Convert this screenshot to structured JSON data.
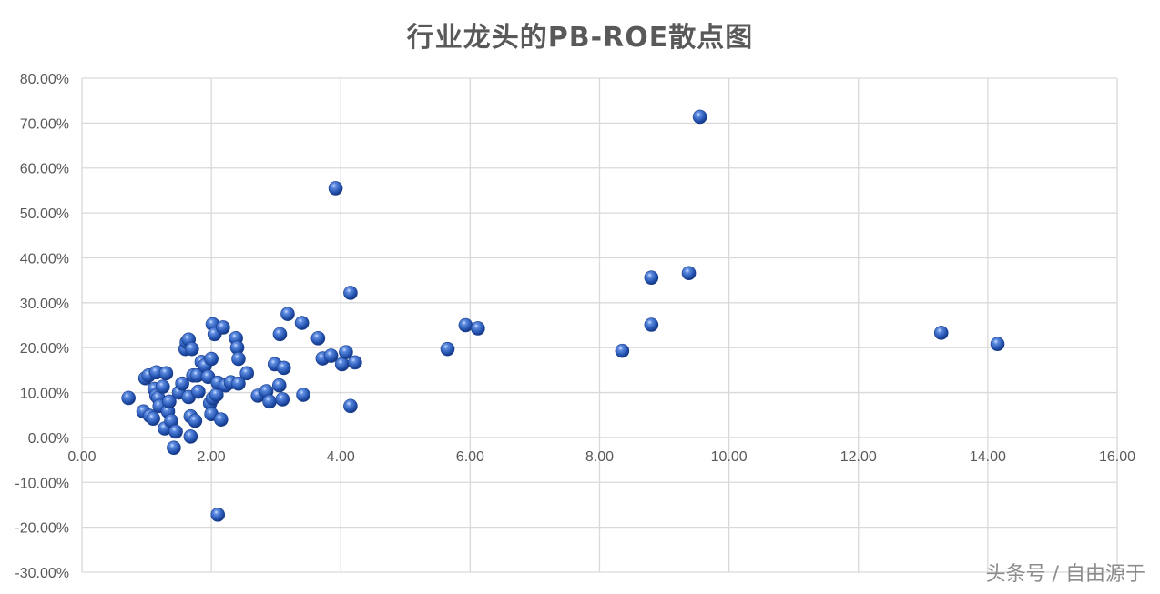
{
  "chart_data": {
    "type": "scatter",
    "title": "行业龙头的PB-ROE散点图",
    "xlabel": "",
    "ylabel": "",
    "xlim": [
      0,
      16
    ],
    "ylim": [
      -0.3,
      0.8
    ],
    "x_ticks": [
      0,
      2,
      4,
      6,
      8,
      10,
      12,
      14,
      16
    ],
    "x_tick_labels": [
      "0.00",
      "2.00",
      "4.00",
      "6.00",
      "8.00",
      "10.00",
      "12.00",
      "14.00",
      "16.00"
    ],
    "y_ticks": [
      0.8,
      0.7,
      0.6,
      0.5,
      0.4,
      0.3,
      0.2,
      0.1,
      0.0,
      -0.1,
      -0.2,
      -0.3
    ],
    "y_tick_labels": [
      "80.00%",
      "70.00%",
      "60.00%",
      "50.00%",
      "40.00%",
      "30.00%",
      "20.00%",
      "10.00%",
      "0.00%",
      "-10.00%",
      "-20.00%",
      "-30.00%"
    ],
    "grid": true,
    "marker_color": "#2f5fbd",
    "points": [
      {
        "x": 0.72,
        "y": 0.088
      },
      {
        "x": 0.95,
        "y": 0.058
      },
      {
        "x": 0.98,
        "y": 0.132
      },
      {
        "x": 1.03,
        "y": 0.138
      },
      {
        "x": 1.05,
        "y": 0.048
      },
      {
        "x": 1.1,
        "y": 0.042
      },
      {
        "x": 1.12,
        "y": 0.108
      },
      {
        "x": 1.15,
        "y": 0.093
      },
      {
        "x": 1.15,
        "y": 0.145
      },
      {
        "x": 1.18,
        "y": 0.088
      },
      {
        "x": 1.2,
        "y": 0.07
      },
      {
        "x": 1.25,
        "y": 0.113
      },
      {
        "x": 1.28,
        "y": 0.02
      },
      {
        "x": 1.3,
        "y": 0.143
      },
      {
        "x": 1.33,
        "y": 0.058
      },
      {
        "x": 1.35,
        "y": 0.08
      },
      {
        "x": 1.38,
        "y": 0.037
      },
      {
        "x": 1.42,
        "y": -0.023
      },
      {
        "x": 1.45,
        "y": 0.013
      },
      {
        "x": 1.5,
        "y": 0.1
      },
      {
        "x": 1.55,
        "y": 0.12
      },
      {
        "x": 1.6,
        "y": 0.197
      },
      {
        "x": 1.62,
        "y": 0.212
      },
      {
        "x": 1.65,
        "y": 0.218
      },
      {
        "x": 1.65,
        "y": 0.09
      },
      {
        "x": 1.68,
        "y": 0.047
      },
      {
        "x": 1.68,
        "y": 0.002
      },
      {
        "x": 1.7,
        "y": 0.197
      },
      {
        "x": 1.72,
        "y": 0.138
      },
      {
        "x": 1.75,
        "y": 0.037
      },
      {
        "x": 1.78,
        "y": 0.138
      },
      {
        "x": 1.8,
        "y": 0.102
      },
      {
        "x": 1.85,
        "y": 0.168
      },
      {
        "x": 1.9,
        "y": 0.16
      },
      {
        "x": 1.95,
        "y": 0.135
      },
      {
        "x": 1.98,
        "y": 0.076
      },
      {
        "x": 2.0,
        "y": 0.052
      },
      {
        "x": 2.0,
        "y": 0.175
      },
      {
        "x": 2.02,
        "y": 0.087
      },
      {
        "x": 2.02,
        "y": 0.252
      },
      {
        "x": 2.05,
        "y": 0.23
      },
      {
        "x": 2.08,
        "y": 0.095
      },
      {
        "x": 2.1,
        "y": 0.122
      },
      {
        "x": 2.1,
        "y": -0.172
      },
      {
        "x": 2.15,
        "y": 0.04
      },
      {
        "x": 2.18,
        "y": 0.245
      },
      {
        "x": 2.22,
        "y": 0.116
      },
      {
        "x": 2.3,
        "y": 0.123
      },
      {
        "x": 2.38,
        "y": 0.221
      },
      {
        "x": 2.4,
        "y": 0.2
      },
      {
        "x": 2.42,
        "y": 0.175
      },
      {
        "x": 2.42,
        "y": 0.12
      },
      {
        "x": 2.55,
        "y": 0.143
      },
      {
        "x": 2.72,
        "y": 0.093
      },
      {
        "x": 2.85,
        "y": 0.103
      },
      {
        "x": 2.9,
        "y": 0.08
      },
      {
        "x": 2.98,
        "y": 0.163
      },
      {
        "x": 3.05,
        "y": 0.116
      },
      {
        "x": 3.06,
        "y": 0.23
      },
      {
        "x": 3.1,
        "y": 0.085
      },
      {
        "x": 3.12,
        "y": 0.155
      },
      {
        "x": 3.18,
        "y": 0.275
      },
      {
        "x": 3.4,
        "y": 0.255
      },
      {
        "x": 3.42,
        "y": 0.095
      },
      {
        "x": 3.65,
        "y": 0.221
      },
      {
        "x": 3.72,
        "y": 0.176
      },
      {
        "x": 3.85,
        "y": 0.182
      },
      {
        "x": 3.92,
        "y": 0.555
      },
      {
        "x": 4.02,
        "y": 0.163
      },
      {
        "x": 4.08,
        "y": 0.19
      },
      {
        "x": 4.15,
        "y": 0.07
      },
      {
        "x": 4.15,
        "y": 0.322
      },
      {
        "x": 4.22,
        "y": 0.167
      },
      {
        "x": 5.65,
        "y": 0.197
      },
      {
        "x": 5.93,
        "y": 0.25
      },
      {
        "x": 6.12,
        "y": 0.243
      },
      {
        "x": 8.35,
        "y": 0.193
      },
      {
        "x": 8.8,
        "y": 0.356
      },
      {
        "x": 8.8,
        "y": 0.251
      },
      {
        "x": 9.38,
        "y": 0.366
      },
      {
        "x": 9.55,
        "y": 0.714
      },
      {
        "x": 13.28,
        "y": 0.233
      },
      {
        "x": 14.15,
        "y": 0.208
      }
    ]
  },
  "watermark": "头条号 / 自由源于"
}
